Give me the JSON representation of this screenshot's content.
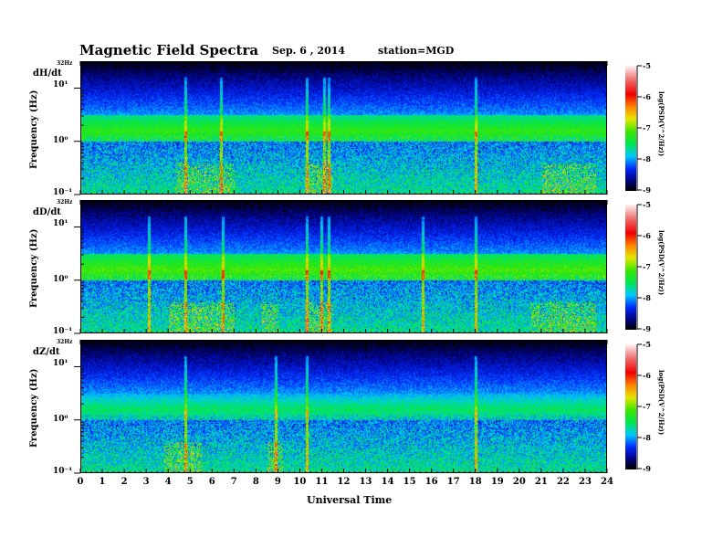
{
  "header": {
    "title": "Magnetic  Field  Spectra",
    "date": "Sep. 6  , 2014",
    "station": "station=MGD"
  },
  "chart_data": {
    "type": "heatmap",
    "title": "Magnetic Field Spectra",
    "xlabel": "Universal Time",
    "ylabel": "Frequency  (Hz)",
    "xlim": [
      0,
      24
    ],
    "x_ticks": [
      "0",
      "1",
      "2",
      "3",
      "4",
      "5",
      "6",
      "7",
      "8",
      "9",
      "10",
      "11",
      "12",
      "13",
      "14",
      "15",
      "16",
      "17",
      "18",
      "19",
      "20",
      "21",
      "22",
      "23",
      "24"
    ],
    "ylim_hz": [
      0.1,
      32
    ],
    "y_scale": "log",
    "y_ticks": [
      "32Hz",
      "10¹",
      "10⁰",
      "10⁻¹"
    ],
    "colorbar": {
      "label": "log(PSD(V^2/Hz))",
      "range": [
        -9,
        -5
      ],
      "ticks": [
        "-5",
        "-6",
        "-7",
        "-8",
        "-9"
      ]
    },
    "panels": [
      {
        "label": "dH/dt",
        "band_level": -7.2,
        "spikes_ut": [
          4.8,
          6.4,
          10.3,
          11.1,
          11.3,
          18.0
        ],
        "low_freq_events_ut": [
          [
            4.3,
            7.0
          ],
          [
            10.2,
            11.5
          ],
          [
            21,
            23.5
          ]
        ]
      },
      {
        "label": "dD/dt",
        "band_level": -7.1,
        "spikes_ut": [
          3.1,
          4.8,
          6.5,
          10.3,
          11.0,
          11.3,
          15.6,
          18.0
        ],
        "low_freq_events_ut": [
          [
            4.0,
            7.0
          ],
          [
            8.2,
            9.0
          ],
          [
            10.2,
            11.5
          ],
          [
            20.5,
            23.5
          ]
        ]
      },
      {
        "label": "dZ/dt",
        "band_level": -7.5,
        "spikes_ut": [
          4.8,
          8.9,
          10.3,
          18.0
        ],
        "low_freq_events_ut": [
          [
            3.8,
            5.5
          ],
          [
            8.5,
            9.2
          ]
        ]
      }
    ]
  }
}
